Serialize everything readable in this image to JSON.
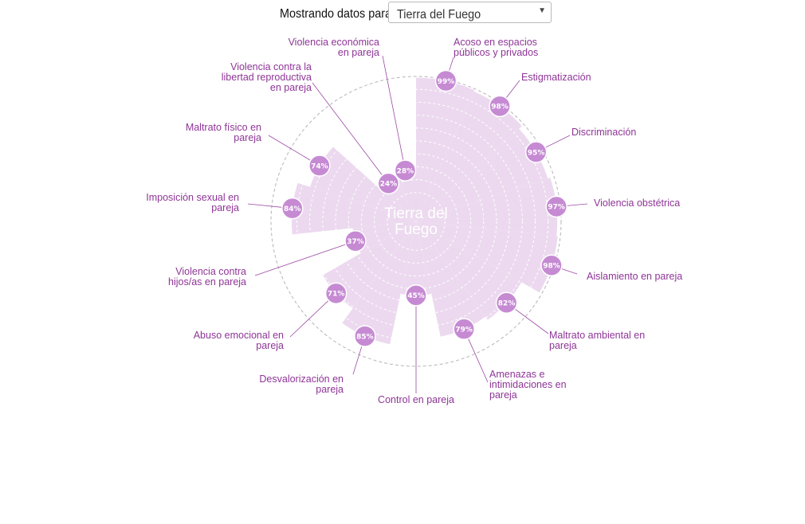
{
  "header": {
    "prompt_label": "Mostrando datos para:",
    "selected_region": "Tierra del Fuego"
  },
  "icons": {
    "dropdown": "triangle-down-icon"
  },
  "colors": {
    "fill": "#ecd9ef",
    "badge": "#c68ad3",
    "label": "#8e3597",
    "leader": "#9b4aa4",
    "grid": "#ffffff",
    "outer_ring": "#b5b5b5"
  },
  "chart_data": {
    "type": "polar-bar",
    "title": "Tierra del Fuego",
    "r_range": [
      0,
      100
    ],
    "unit": "%",
    "categories": [
      "Acoso en espacios públicos y privados",
      "Estigmatización",
      "Discriminación",
      "Violencia obstétrica",
      "Aislamiento en pareja",
      "Maltrato ambiental en pareja",
      "Amenazas e intimidaciones en pareja",
      "Control en pareja",
      "Desvalorización en pareja",
      "Abuso emocional en pareja",
      "Violencia contra hijos/as en pareja",
      "Imposición sexual en pareja",
      "Maltrato físico en pareja",
      "Violencia contra la libertad reproductiva en pareja",
      "Violencia económica en pareja"
    ],
    "values": [
      99,
      98,
      95,
      97,
      98,
      82,
      79,
      45,
      85,
      71,
      37,
      84,
      74,
      24,
      28
    ],
    "value_labels": [
      "99%",
      "98%",
      "95%",
      "97%",
      "98%",
      "82%",
      "79%",
      "45%",
      "85%",
      "71%",
      "37%",
      "84%",
      "74%",
      "24%",
      "28%"
    ],
    "label_lines": [
      [
        "Acoso en espacios",
        "públicos y privados"
      ],
      [
        "Estigmatización"
      ],
      [
        "Discriminación"
      ],
      [
        "Violencia obstétrica"
      ],
      [
        "Aislamiento en pareja"
      ],
      [
        "Maltrato ambiental en",
        "pareja"
      ],
      [
        "Amenazas e",
        "intimidaciones en",
        "pareja"
      ],
      [
        "Control en pareja"
      ],
      [
        "Desvalorización en",
        "pareja"
      ],
      [
        "Abuso emocional en",
        "pareja"
      ],
      [
        "Violencia contra",
        "hijos/as en pareja"
      ],
      [
        "Imposición sexual en",
        "pareja"
      ],
      [
        "Maltrato físico en",
        "pareja"
      ],
      [
        "Violencia contra la",
        "libertad reproductiva",
        "en pareja"
      ],
      [
        "Violencia económica",
        "en pareja"
      ]
    ]
  }
}
